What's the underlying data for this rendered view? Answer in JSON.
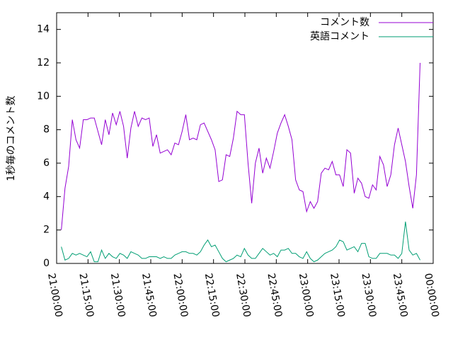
{
  "chart_data": {
    "type": "line",
    "y_label": "1秒毎のコメント数",
    "x": [
      "21:02:15",
      "21:04:00",
      "21:05:45",
      "21:07:30",
      "21:09:15",
      "21:11:00",
      "21:12:45",
      "21:14:30",
      "21:16:15",
      "21:18:00",
      "21:19:45",
      "21:21:30",
      "21:23:15",
      "21:25:00",
      "21:26:45",
      "21:28:30",
      "21:30:15",
      "21:32:00",
      "21:33:45",
      "21:35:30",
      "21:37:15",
      "21:39:00",
      "21:40:45",
      "21:42:30",
      "21:44:15",
      "21:46:00",
      "21:47:45",
      "21:49:30",
      "21:51:15",
      "21:53:00",
      "21:54:45",
      "21:56:30",
      "21:58:15",
      "22:00:00",
      "22:01:45",
      "22:03:30",
      "22:05:15",
      "22:07:00",
      "22:08:45",
      "22:10:30",
      "22:12:15",
      "22:14:00",
      "22:15:45",
      "22:17:30",
      "22:19:15",
      "22:21:00",
      "22:22:45",
      "22:24:30",
      "22:26:15",
      "22:28:00",
      "22:29:45",
      "22:31:30",
      "22:33:15",
      "22:35:00",
      "22:36:45",
      "22:38:30",
      "22:40:15",
      "22:42:00",
      "22:43:45",
      "22:45:30",
      "22:47:15",
      "22:49:00",
      "22:50:45",
      "22:52:30",
      "22:54:15",
      "22:56:00",
      "22:57:45",
      "22:59:30",
      "23:01:15",
      "23:03:00",
      "23:04:45",
      "23:06:30",
      "23:08:15",
      "23:10:00",
      "23:11:45",
      "23:13:30",
      "23:15:15",
      "23:17:00",
      "23:18:45",
      "23:20:30",
      "23:22:15",
      "23:24:00",
      "23:25:45",
      "23:27:30",
      "23:29:15",
      "23:31:00",
      "23:32:45",
      "23:34:30",
      "23:36:15",
      "23:38:00",
      "23:39:45",
      "23:41:30",
      "23:43:15",
      "23:45:00",
      "23:46:45",
      "23:48:30",
      "23:50:15",
      "23:52:00",
      "23:53:45"
    ],
    "series": [
      {
        "name": "コメント数",
        "color": "#9400d3",
        "values": [
          2.0,
          4.5,
          5.8,
          8.6,
          7.4,
          6.9,
          8.6,
          8.6,
          8.7,
          8.7,
          7.9,
          7.1,
          8.6,
          7.7,
          9.0,
          8.3,
          9.1,
          8.2,
          6.3,
          8.1,
          9.1,
          8.2,
          8.7,
          8.6,
          8.7,
          7.0,
          7.7,
          6.6,
          6.7,
          6.8,
          6.5,
          7.2,
          7.1,
          7.9,
          8.9,
          7.4,
          7.5,
          7.4,
          8.3,
          8.4,
          7.9,
          7.4,
          6.8,
          4.9,
          5.0,
          6.5,
          6.4,
          7.5,
          9.1,
          8.9,
          8.9,
          6.0,
          3.6,
          6.0,
          6.9,
          5.4,
          6.3,
          5.7,
          6.7,
          7.8,
          8.4,
          8.9,
          8.2,
          7.4,
          5.0,
          4.4,
          4.3,
          3.1,
          3.7,
          3.3,
          3.7,
          5.4,
          5.7,
          5.6,
          6.1,
          5.3,
          5.3,
          4.6,
          6.8,
          6.6,
          4.2,
          5.1,
          4.8,
          4.0,
          3.9,
          4.7,
          4.4,
          6.4,
          5.9,
          4.6,
          5.3,
          7.1,
          8.1,
          7.1,
          6.1,
          4.6,
          3.3,
          5.3,
          12.0
        ]
      },
      {
        "name": "英語コメント",
        "color": "#009e73",
        "values": [
          1.0,
          0.2,
          0.3,
          0.6,
          0.5,
          0.6,
          0.5,
          0.4,
          0.7,
          0.1,
          0.1,
          0.8,
          0.3,
          0.6,
          0.4,
          0.3,
          0.6,
          0.5,
          0.3,
          0.7,
          0.6,
          0.5,
          0.3,
          0.3,
          0.4,
          0.4,
          0.4,
          0.3,
          0.4,
          0.3,
          0.3,
          0.5,
          0.6,
          0.7,
          0.7,
          0.6,
          0.6,
          0.5,
          0.7,
          1.1,
          1.4,
          1.0,
          1.1,
          0.7,
          0.3,
          0.1,
          0.2,
          0.3,
          0.5,
          0.4,
          0.9,
          0.5,
          0.3,
          0.3,
          0.6,
          0.9,
          0.7,
          0.5,
          0.6,
          0.4,
          0.8,
          0.8,
          0.9,
          0.6,
          0.6,
          0.4,
          0.3,
          0.7,
          0.3,
          0.1,
          0.2,
          0.4,
          0.6,
          0.7,
          0.8,
          1.0,
          1.4,
          1.3,
          0.8,
          0.9,
          1.0,
          0.7,
          1.2,
          1.2,
          0.4,
          0.3,
          0.3,
          0.6,
          0.6,
          0.6,
          0.5,
          0.5,
          0.3,
          0.6,
          2.5,
          0.8,
          0.5,
          0.6,
          0.2
        ]
      }
    ],
    "xlim": [
      "21:00:00",
      "00:00:00"
    ],
    "xticks": [
      "21:00:00",
      "21:15:00",
      "21:30:00",
      "21:45:00",
      "22:00:00",
      "22:15:00",
      "22:30:00",
      "22:45:00",
      "23:00:00",
      "23:15:00",
      "23:30:00",
      "23:45:00",
      "00:00:00"
    ],
    "ylim": [
      0,
      15
    ],
    "yticks": [
      0,
      2,
      4,
      6,
      8,
      10,
      12,
      14
    ],
    "legend": "top-right"
  }
}
